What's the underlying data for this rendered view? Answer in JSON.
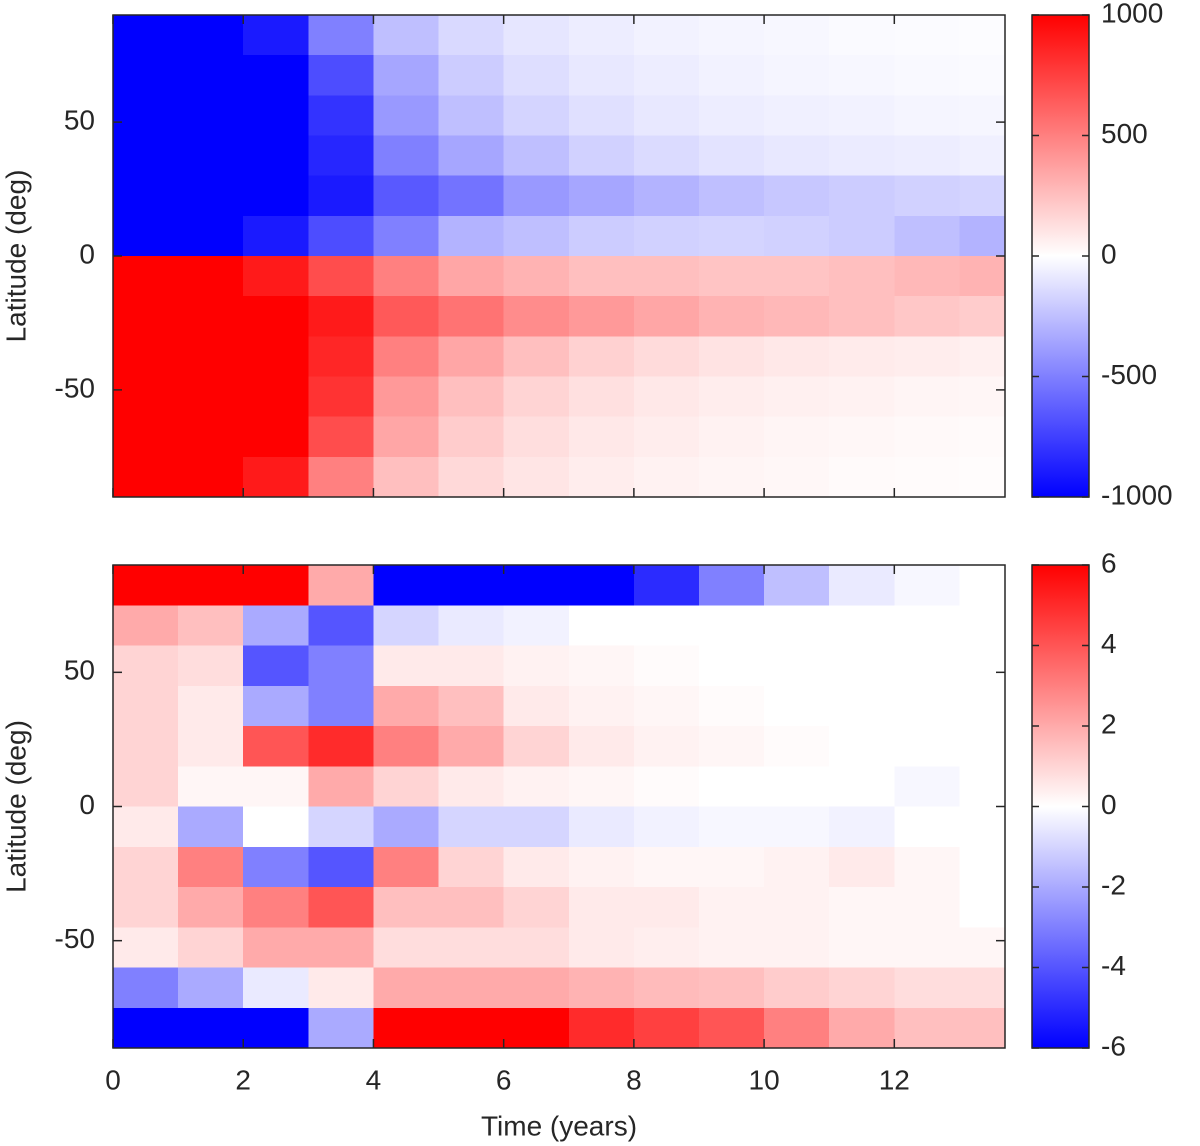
{
  "chart_data": [
    {
      "type": "heatmap",
      "ylabel": "Latitude (deg)",
      "x": [
        0.5,
        1.5,
        2.5,
        3.5,
        4.5,
        5.5,
        6.5,
        7.5,
        8.5,
        9.5,
        10.5,
        11.5,
        12.5,
        13.5
      ],
      "y": [
        82.5,
        67.5,
        52.5,
        37.5,
        22.5,
        7.5,
        -7.5,
        -22.5,
        -37.5,
        -52.5,
        -67.5,
        -82.5
      ],
      "values": [
        [
          -1000,
          -1000,
          -900,
          -500,
          -250,
          -150,
          -100,
          -70,
          -50,
          -40,
          -30,
          -20,
          -15,
          -10
        ],
        [
          -1000,
          -1000,
          -1000,
          -700,
          -350,
          -200,
          -130,
          -90,
          -70,
          -50,
          -40,
          -30,
          -25,
          -20
        ],
        [
          -1000,
          -1000,
          -1000,
          -800,
          -400,
          -250,
          -170,
          -120,
          -90,
          -70,
          -60,
          -50,
          -40,
          -35
        ],
        [
          -1000,
          -1000,
          -1000,
          -850,
          -500,
          -350,
          -250,
          -180,
          -140,
          -110,
          -90,
          -80,
          -70,
          -60
        ],
        [
          -1000,
          -1000,
          -1000,
          -900,
          -650,
          -550,
          -400,
          -350,
          -300,
          -250,
          -220,
          -200,
          -180,
          -170
        ],
        [
          -1000,
          -1000,
          -900,
          -700,
          -500,
          -300,
          -250,
          -200,
          -180,
          -170,
          -180,
          -200,
          -250,
          -300
        ],
        [
          1000,
          1000,
          900,
          700,
          500,
          350,
          300,
          250,
          250,
          230,
          230,
          250,
          280,
          300
        ],
        [
          1000,
          1000,
          1000,
          900,
          650,
          550,
          450,
          400,
          350,
          300,
          280,
          250,
          220,
          200
        ],
        [
          1000,
          1000,
          1000,
          850,
          500,
          350,
          250,
          180,
          140,
          110,
          90,
          80,
          70,
          60
        ],
        [
          1000,
          1000,
          1000,
          800,
          400,
          250,
          170,
          120,
          90,
          70,
          60,
          50,
          40,
          35
        ],
        [
          1000,
          1000,
          1000,
          700,
          350,
          200,
          130,
          90,
          70,
          50,
          40,
          30,
          25,
          20
        ],
        [
          1000,
          1000,
          900,
          500,
          250,
          150,
          100,
          70,
          50,
          40,
          30,
          20,
          15,
          10
        ]
      ],
      "xlim": [
        0,
        13.7
      ],
      "xticks": [
        0,
        2,
        4,
        6,
        8,
        10,
        12
      ],
      "show_xticklabels": false,
      "ylim": [
        -90,
        90
      ],
      "yticks": [
        -50,
        0,
        50
      ],
      "clim": [
        -1000,
        1000
      ],
      "cticks": [
        -1000,
        -500,
        0,
        500,
        1000
      ],
      "colormap": [
        "#0000ff",
        "#ffffff",
        "#ff0000"
      ]
    },
    {
      "type": "heatmap",
      "ylabel": "Latitude (deg)",
      "xlabel": "Time (years)",
      "x": [
        0.5,
        1.5,
        2.5,
        3.5,
        4.5,
        5.5,
        6.5,
        7.5,
        8.5,
        9.5,
        10.5,
        11.5,
        12.5,
        13.5
      ],
      "y": [
        82.5,
        67.5,
        52.5,
        37.5,
        22.5,
        7.5,
        -7.5,
        -22.5,
        -37.5,
        -52.5,
        -67.5,
        -82.5
      ],
      "values": [
        [
          6,
          6,
          6,
          2,
          -6,
          -6,
          -6,
          -6,
          -5,
          -3,
          -1.5,
          -0.5,
          -0.2,
          0
        ],
        [
          2,
          1.5,
          -2,
          -4,
          -1,
          -0.5,
          -0.3,
          0,
          0,
          0,
          0,
          0,
          0,
          0
        ],
        [
          1,
          0.8,
          -4,
          -3,
          0.5,
          0.5,
          0.3,
          0.2,
          0.1,
          0,
          0,
          0,
          0,
          0
        ],
        [
          1,
          0.5,
          -2,
          -3,
          2,
          1.5,
          0.5,
          0.3,
          0.2,
          0.1,
          0,
          0,
          0,
          0
        ],
        [
          1,
          0.5,
          4,
          5,
          3,
          2,
          1,
          0.5,
          0.3,
          0.2,
          0.1,
          0,
          0,
          0
        ],
        [
          1,
          0.2,
          0.2,
          2,
          1,
          0.5,
          0.3,
          0.2,
          0.1,
          0,
          0,
          0,
          -0.2,
          0
        ],
        [
          0.5,
          -2,
          0,
          -1,
          -2,
          -1,
          -1,
          -0.5,
          -0.3,
          -0.2,
          -0.2,
          -0.3,
          0,
          0
        ],
        [
          1,
          3,
          -3,
          -4,
          3,
          1,
          0.5,
          0.3,
          0.2,
          0.2,
          0.3,
          0.5,
          0.2,
          0
        ],
        [
          1,
          2,
          3,
          4,
          1.5,
          1.5,
          1,
          0.5,
          0.5,
          0.3,
          0.3,
          0.2,
          0.2,
          0
        ],
        [
          0.5,
          1,
          2,
          2,
          0.8,
          0.8,
          0.8,
          0.5,
          0.4,
          0.3,
          0.3,
          0.2,
          0.2,
          0.2
        ],
        [
          -3,
          -2,
          -0.5,
          0.5,
          2,
          2,
          2,
          1.8,
          1.6,
          1.5,
          1.2,
          1,
          0.8,
          0.8
        ],
        [
          -6,
          -6,
          -6,
          -2,
          6,
          6,
          6,
          5,
          4.5,
          4,
          3,
          2,
          1.5,
          1.5
        ]
      ],
      "xlim": [
        0,
        13.7
      ],
      "xticks": [
        0,
        2,
        4,
        6,
        8,
        10,
        12
      ],
      "show_xticklabels": true,
      "ylim": [
        -90,
        90
      ],
      "yticks": [
        -50,
        0,
        50
      ],
      "clim": [
        -6,
        6
      ],
      "cticks": [
        -6,
        -4,
        -2,
        0,
        2,
        4,
        6
      ],
      "colormap": [
        "#0000ff",
        "#ffffff",
        "#ff0000"
      ]
    }
  ]
}
